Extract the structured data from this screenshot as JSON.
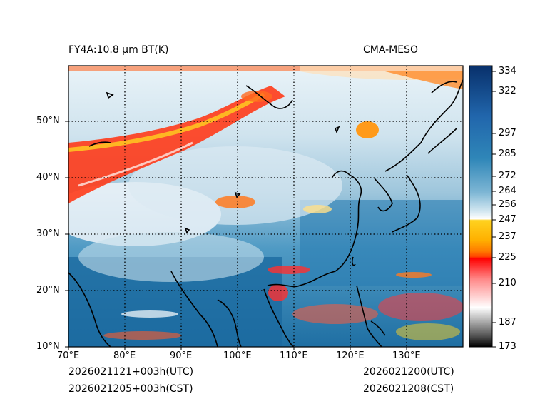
{
  "header": {
    "left_title": "FY4A:10.8 μm BT(K)",
    "right_title": "CMA-MESO"
  },
  "axes": {
    "lon_labels": [
      "70°E",
      "80°E",
      "90°E",
      "100°E",
      "110°E",
      "120°E",
      "130°E"
    ],
    "lat_labels": [
      "50°N",
      "40°N",
      "30°N",
      "20°N",
      "10°N"
    ]
  },
  "colorbar": {
    "ticks": [
      "334",
      "322",
      "297",
      "285",
      "272",
      "264",
      "256",
      "247",
      "237",
      "225",
      "210",
      "187",
      "173"
    ],
    "colors": {
      "cold_black": "#000000",
      "gray": "#9a9a9a",
      "red": "#ff0000",
      "orange": "#ff7a00",
      "yellow": "#ffd21f",
      "white": "#ffffff",
      "light_blue": "#b9d8e8",
      "mid_blue": "#2f86b8",
      "dark_blue": "#08306b"
    }
  },
  "footer": {
    "init_utc": "2026021121+003h(UTC)",
    "init_cst": "2026021205+003h(CST)",
    "valid_utc": "2026021200(UTC)",
    "valid_cst": "2026021208(CST)"
  }
}
